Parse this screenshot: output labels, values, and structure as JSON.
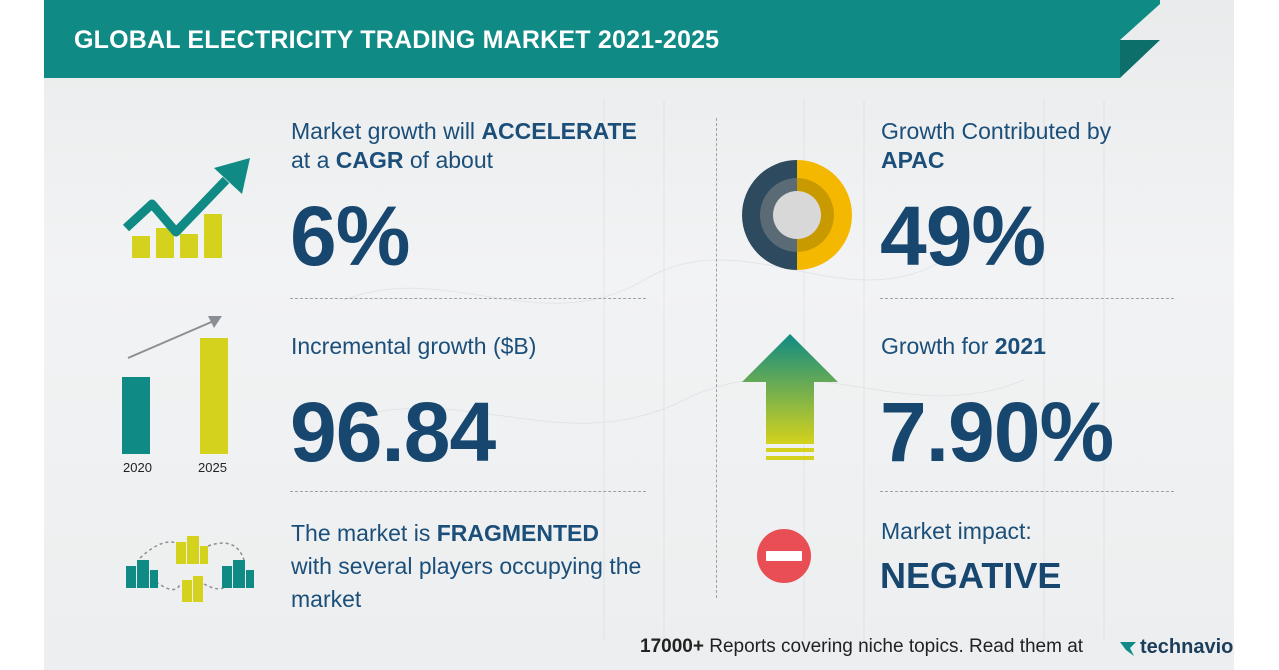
{
  "title": "GLOBAL ELECTRICITY TRADING MARKET 2021-2025",
  "cagr": {
    "line1_prefix": "Market growth will ",
    "line1_bold": "ACCELERATE",
    "line2_prefix": "at a ",
    "line2_bold": "CAGR",
    "line2_suffix": " of about",
    "value": "6%",
    "icon": "growth-chart-icon"
  },
  "incremental": {
    "label": "Incremental growth ($B)",
    "value": "96.84",
    "years": [
      "2020",
      "2025"
    ],
    "bar_levels": [
      0.58,
      0.88
    ],
    "colors": [
      "#0f8a84",
      "#d4d21c"
    ],
    "icon": "bar-growth-icon"
  },
  "fragmented": {
    "line1_prefix": "The market is ",
    "line1_bold": "FRAGMENTED",
    "line2": "with several players occupying the",
    "line3": "market",
    "icon": "buildings-icon"
  },
  "apac": {
    "line1": "Growth Contributed by",
    "line2_bold": "APAC",
    "value": "49%",
    "icon": "donut-icon",
    "colors": [
      "#2e4a5e",
      "#f5b800"
    ]
  },
  "growth2021": {
    "label_prefix": "Growth for ",
    "label_bold": "2021",
    "value": "7.90%",
    "icon": "up-arrow-icon"
  },
  "impact": {
    "label": "Market impact:",
    "value": "NEGATIVE",
    "icon": "minus-circle-icon",
    "color": "#e94e55"
  },
  "footer": {
    "count": "17000+",
    "text": " Reports covering niche topics. Read them at",
    "brand": "technavio"
  },
  "colors": {
    "banner": "#0f8a84",
    "text": "#1b4f7a"
  }
}
